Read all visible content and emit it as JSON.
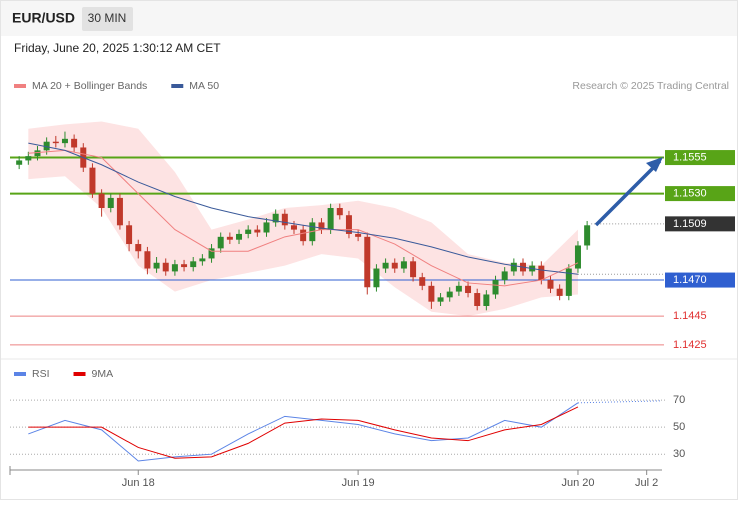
{
  "header": {
    "symbol": "EUR/USD",
    "interval": "30 MIN",
    "timestamp": "Friday, June 20, 2025 1:30:12 AM CET"
  },
  "chart_data": [
    {
      "type": "candlestick",
      "credit": "Research © 2025 Trading Central",
      "up_color": "#2e8b2e",
      "down_color": "#c0392b",
      "x": [
        -13,
        -12,
        -11,
        -10,
        -9,
        -8,
        -7,
        -6,
        -5,
        -4,
        -3,
        -2,
        -1,
        0,
        1,
        2,
        3,
        4,
        5,
        6,
        7,
        8,
        9,
        10,
        11,
        12,
        13,
        14,
        15,
        16,
        17,
        18,
        19,
        20,
        21,
        22,
        23,
        24,
        25,
        26,
        27,
        28,
        29,
        30,
        31,
        32,
        33,
        34,
        35,
        36,
        37,
        38,
        39,
        40,
        41,
        42,
        43,
        44,
        45,
        46,
        47,
        48,
        49
      ],
      "open": [
        1.155,
        1.1553,
        1.1556,
        1.156,
        1.1566,
        1.1565,
        1.1568,
        1.1562,
        1.1548,
        1.153,
        1.152,
        1.1527,
        1.1508,
        1.1495,
        1.149,
        1.1478,
        1.1482,
        1.1476,
        1.1481,
        1.1479,
        1.1483,
        1.1485,
        1.1492,
        1.15,
        1.1498,
        1.1502,
        1.1505,
        1.1503,
        1.151,
        1.1516,
        1.1508,
        1.1505,
        1.1497,
        1.151,
        1.1505,
        1.152,
        1.1515,
        1.1502,
        1.15,
        1.1465,
        1.1478,
        1.1482,
        1.1478,
        1.1483,
        1.1472,
        1.1466,
        1.1455,
        1.1458,
        1.1462,
        1.1466,
        1.1461,
        1.1452,
        1.146,
        1.147,
        1.1476,
        1.1482,
        1.1476,
        1.148,
        1.147,
        1.1464,
        1.1459,
        1.1478,
        1.1494
      ],
      "high": [
        1.1556,
        1.1559,
        1.1563,
        1.1569,
        1.157,
        1.1573,
        1.1571,
        1.1565,
        1.1551,
        1.1533,
        1.153,
        1.153,
        1.1511,
        1.1498,
        1.1493,
        1.1486,
        1.1485,
        1.1484,
        1.1484,
        1.1486,
        1.1488,
        1.1495,
        1.1503,
        1.1503,
        1.1505,
        1.1508,
        1.1508,
        1.1513,
        1.1519,
        1.1519,
        1.1511,
        1.1508,
        1.1513,
        1.1513,
        1.1523,
        1.1523,
        1.1518,
        1.1505,
        1.1503,
        1.1481,
        1.1485,
        1.1485,
        1.1486,
        1.1486,
        1.1475,
        1.1469,
        1.1461,
        1.1465,
        1.1469,
        1.1469,
        1.1464,
        1.1463,
        1.1473,
        1.1479,
        1.1485,
        1.1485,
        1.1483,
        1.1483,
        1.1473,
        1.1467,
        1.1481,
        1.1497,
        1.1511
      ],
      "low": [
        1.1547,
        1.155,
        1.1553,
        1.1557,
        1.1562,
        1.1562,
        1.1559,
        1.1545,
        1.1527,
        1.1514,
        1.1517,
        1.1505,
        1.149,
        1.1485,
        1.1474,
        1.1475,
        1.1473,
        1.1473,
        1.1476,
        1.1476,
        1.148,
        1.1482,
        1.1489,
        1.1495,
        1.1495,
        1.1499,
        1.15,
        1.15,
        1.1507,
        1.1505,
        1.1502,
        1.1494,
        1.1494,
        1.1502,
        1.1502,
        1.1512,
        1.1499,
        1.1497,
        1.146,
        1.1462,
        1.1475,
        1.1475,
        1.1475,
        1.1469,
        1.1463,
        1.145,
        1.1452,
        1.1455,
        1.1459,
        1.1458,
        1.1449,
        1.1449,
        1.1457,
        1.1467,
        1.1473,
        1.1473,
        1.1473,
        1.1467,
        1.1461,
        1.1456,
        1.1456,
        1.1475,
        1.1491
      ],
      "close": [
        1.1553,
        1.1556,
        1.156,
        1.1566,
        1.1565,
        1.1568,
        1.1562,
        1.1548,
        1.153,
        1.152,
        1.1527,
        1.1508,
        1.1495,
        1.149,
        1.1478,
        1.1482,
        1.1476,
        1.1481,
        1.1479,
        1.1483,
        1.1485,
        1.1492,
        1.15,
        1.1498,
        1.1502,
        1.1505,
        1.1503,
        1.151,
        1.1516,
        1.1508,
        1.1505,
        1.1497,
        1.151,
        1.1505,
        1.152,
        1.1515,
        1.1502,
        1.15,
        1.1465,
        1.1478,
        1.1482,
        1.1478,
        1.1483,
        1.1472,
        1.1466,
        1.1455,
        1.1458,
        1.1462,
        1.1466,
        1.1461,
        1.1452,
        1.146,
        1.147,
        1.1476,
        1.1482,
        1.1476,
        1.148,
        1.147,
        1.1464,
        1.1459,
        1.1478,
        1.1494,
        1.1508
      ],
      "overlays": [
        {
          "name": "MA 20 + Bollinger Bands",
          "color": "#f08080",
          "band_color": "#fde3e3",
          "x": [
            -12,
            -8,
            -4,
            0,
            4,
            8,
            12,
            16,
            20,
            24,
            28,
            32,
            36,
            40,
            44,
            48
          ],
          "values": [
            1.1558,
            1.156,
            1.1555,
            1.153,
            1.1505,
            1.149,
            1.149,
            1.15,
            1.1505,
            1.1505,
            1.1495,
            1.148,
            1.1468,
            1.1466,
            1.147,
            1.1482
          ],
          "upper": [
            1.1575,
            1.1578,
            1.158,
            1.1575,
            1.1545,
            1.1505,
            1.1512,
            1.152,
            1.1522,
            1.1525,
            1.152,
            1.151,
            1.1488,
            1.1482,
            1.148,
            1.1505
          ],
          "lower": [
            1.154,
            1.1542,
            1.152,
            1.148,
            1.1462,
            1.147,
            1.1475,
            1.148,
            1.1488,
            1.1485,
            1.1465,
            1.1448,
            1.1445,
            1.145,
            1.1458,
            1.146
          ]
        },
        {
          "name": "MA 50",
          "color": "#3a5a9a",
          "x": [
            -12,
            -8,
            -4,
            0,
            4,
            8,
            12,
            16,
            20,
            24,
            28,
            32,
            36,
            40,
            44,
            48
          ],
          "values": [
            1.1565,
            1.156,
            1.155,
            1.1538,
            1.1528,
            1.152,
            1.1514,
            1.151,
            1.1506,
            1.1503,
            1.1499,
            1.1493,
            1.1486,
            1.1481,
            1.1477,
            1.1474
          ]
        }
      ],
      "levels": [
        {
          "value": 1.1555,
          "label": "1.1555",
          "color": "#58a417",
          "style": "box"
        },
        {
          "value": 1.153,
          "label": "1.1530",
          "color": "#58a417",
          "style": "box"
        },
        {
          "value": 1.1509,
          "label": "1.1509",
          "color": "#333333",
          "style": "dotted"
        },
        {
          "value": 1.147,
          "label": "1.1470",
          "color": "#2f5fd0",
          "style": "box"
        },
        {
          "value": 1.1445,
          "label": "1.1445",
          "color": "#e03030",
          "style": "text"
        },
        {
          "value": 1.1425,
          "label": "1.1425",
          "color": "#e03030",
          "style": "text"
        }
      ],
      "xlim": [
        -14,
        57.5
      ],
      "ylim": [
        1.1418,
        1.1588
      ]
    },
    {
      "type": "line",
      "series": [
        {
          "name": "RSI",
          "color": "#5b84e6",
          "x": [
            -12,
            -8,
            -4,
            0,
            4,
            8,
            12,
            16,
            20,
            24,
            28,
            32,
            36,
            40,
            44,
            48
          ],
          "values": [
            45,
            55,
            48,
            25,
            28,
            30,
            45,
            58,
            55,
            52,
            45,
            40,
            42,
            55,
            50,
            68
          ]
        },
        {
          "name": "9MA",
          "color": "#e00000",
          "x": [
            -12,
            -8,
            -4,
            0,
            4,
            8,
            12,
            16,
            20,
            24,
            28,
            32,
            36,
            40,
            44,
            48
          ],
          "values": [
            50,
            50,
            50,
            35,
            27,
            28,
            38,
            53,
            56,
            55,
            48,
            42,
            40,
            48,
            52,
            65
          ]
        }
      ],
      "xlim": [
        -14,
        57.5
      ],
      "ylim": [
        22,
        96
      ],
      "yticks": [
        30,
        50,
        70
      ],
      "grid": true,
      "xticks": [
        {
          "value": 0,
          "label": "Jun 18"
        },
        {
          "value": 24,
          "label": "Jun 19"
        },
        {
          "value": 48,
          "label": "Jun 20"
        },
        {
          "value": 55.5,
          "label": "Jul 2"
        }
      ]
    }
  ]
}
